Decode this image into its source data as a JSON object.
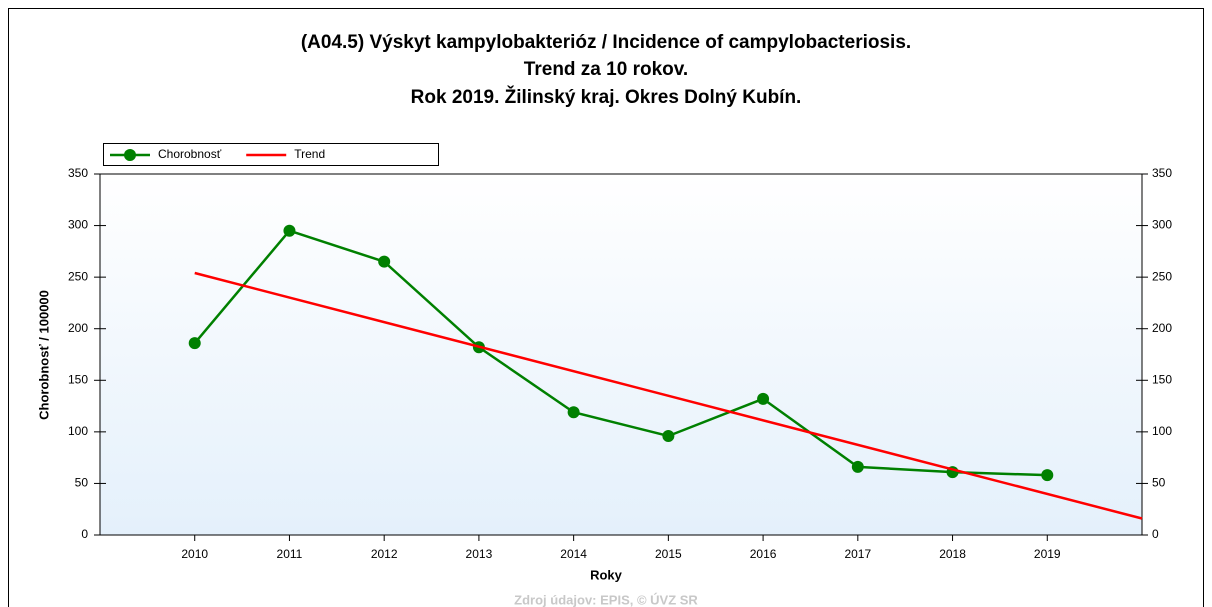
{
  "chart_data": {
    "type": "line",
    "title": [
      "(A04.5) Výskyt kampylobakterióz / Incidence of campylobacteriosis.",
      "Trend za 10 rokov.",
      "Rok 2019. Žilinský kraj. Okres Dolný Kubín."
    ],
    "x_label": "Roky",
    "y_label": "Chorobnosť / 100000",
    "source": "Zdroj údajov: EPIS, © ÚVZ SR",
    "xlim": [
      2009,
      2020
    ],
    "xticks": [
      2010,
      2011,
      2012,
      2013,
      2014,
      2015,
      2016,
      2017,
      2018,
      2019
    ],
    "ylim": [
      0,
      350
    ],
    "yticks": [
      0,
      50,
      100,
      150,
      200,
      250,
      300,
      350
    ],
    "y2lim": [
      0,
      350
    ],
    "y2ticks": [
      0,
      50,
      100,
      150,
      200,
      250,
      300,
      350
    ],
    "legend": "top-left",
    "series": [
      {
        "name": "Chorobnosť",
        "color": "#008000",
        "markers": true,
        "x": [
          2010,
          2011,
          2012,
          2013,
          2014,
          2015,
          2016,
          2017,
          2018,
          2019
        ],
        "values": [
          186,
          295,
          265,
          182,
          119,
          96,
          132,
          66,
          61,
          58
        ]
      },
      {
        "name": "Trend",
        "color": "#ff0000",
        "markers": false,
        "x": [
          2010,
          2020
        ],
        "values": [
          254,
          16
        ]
      }
    ]
  }
}
